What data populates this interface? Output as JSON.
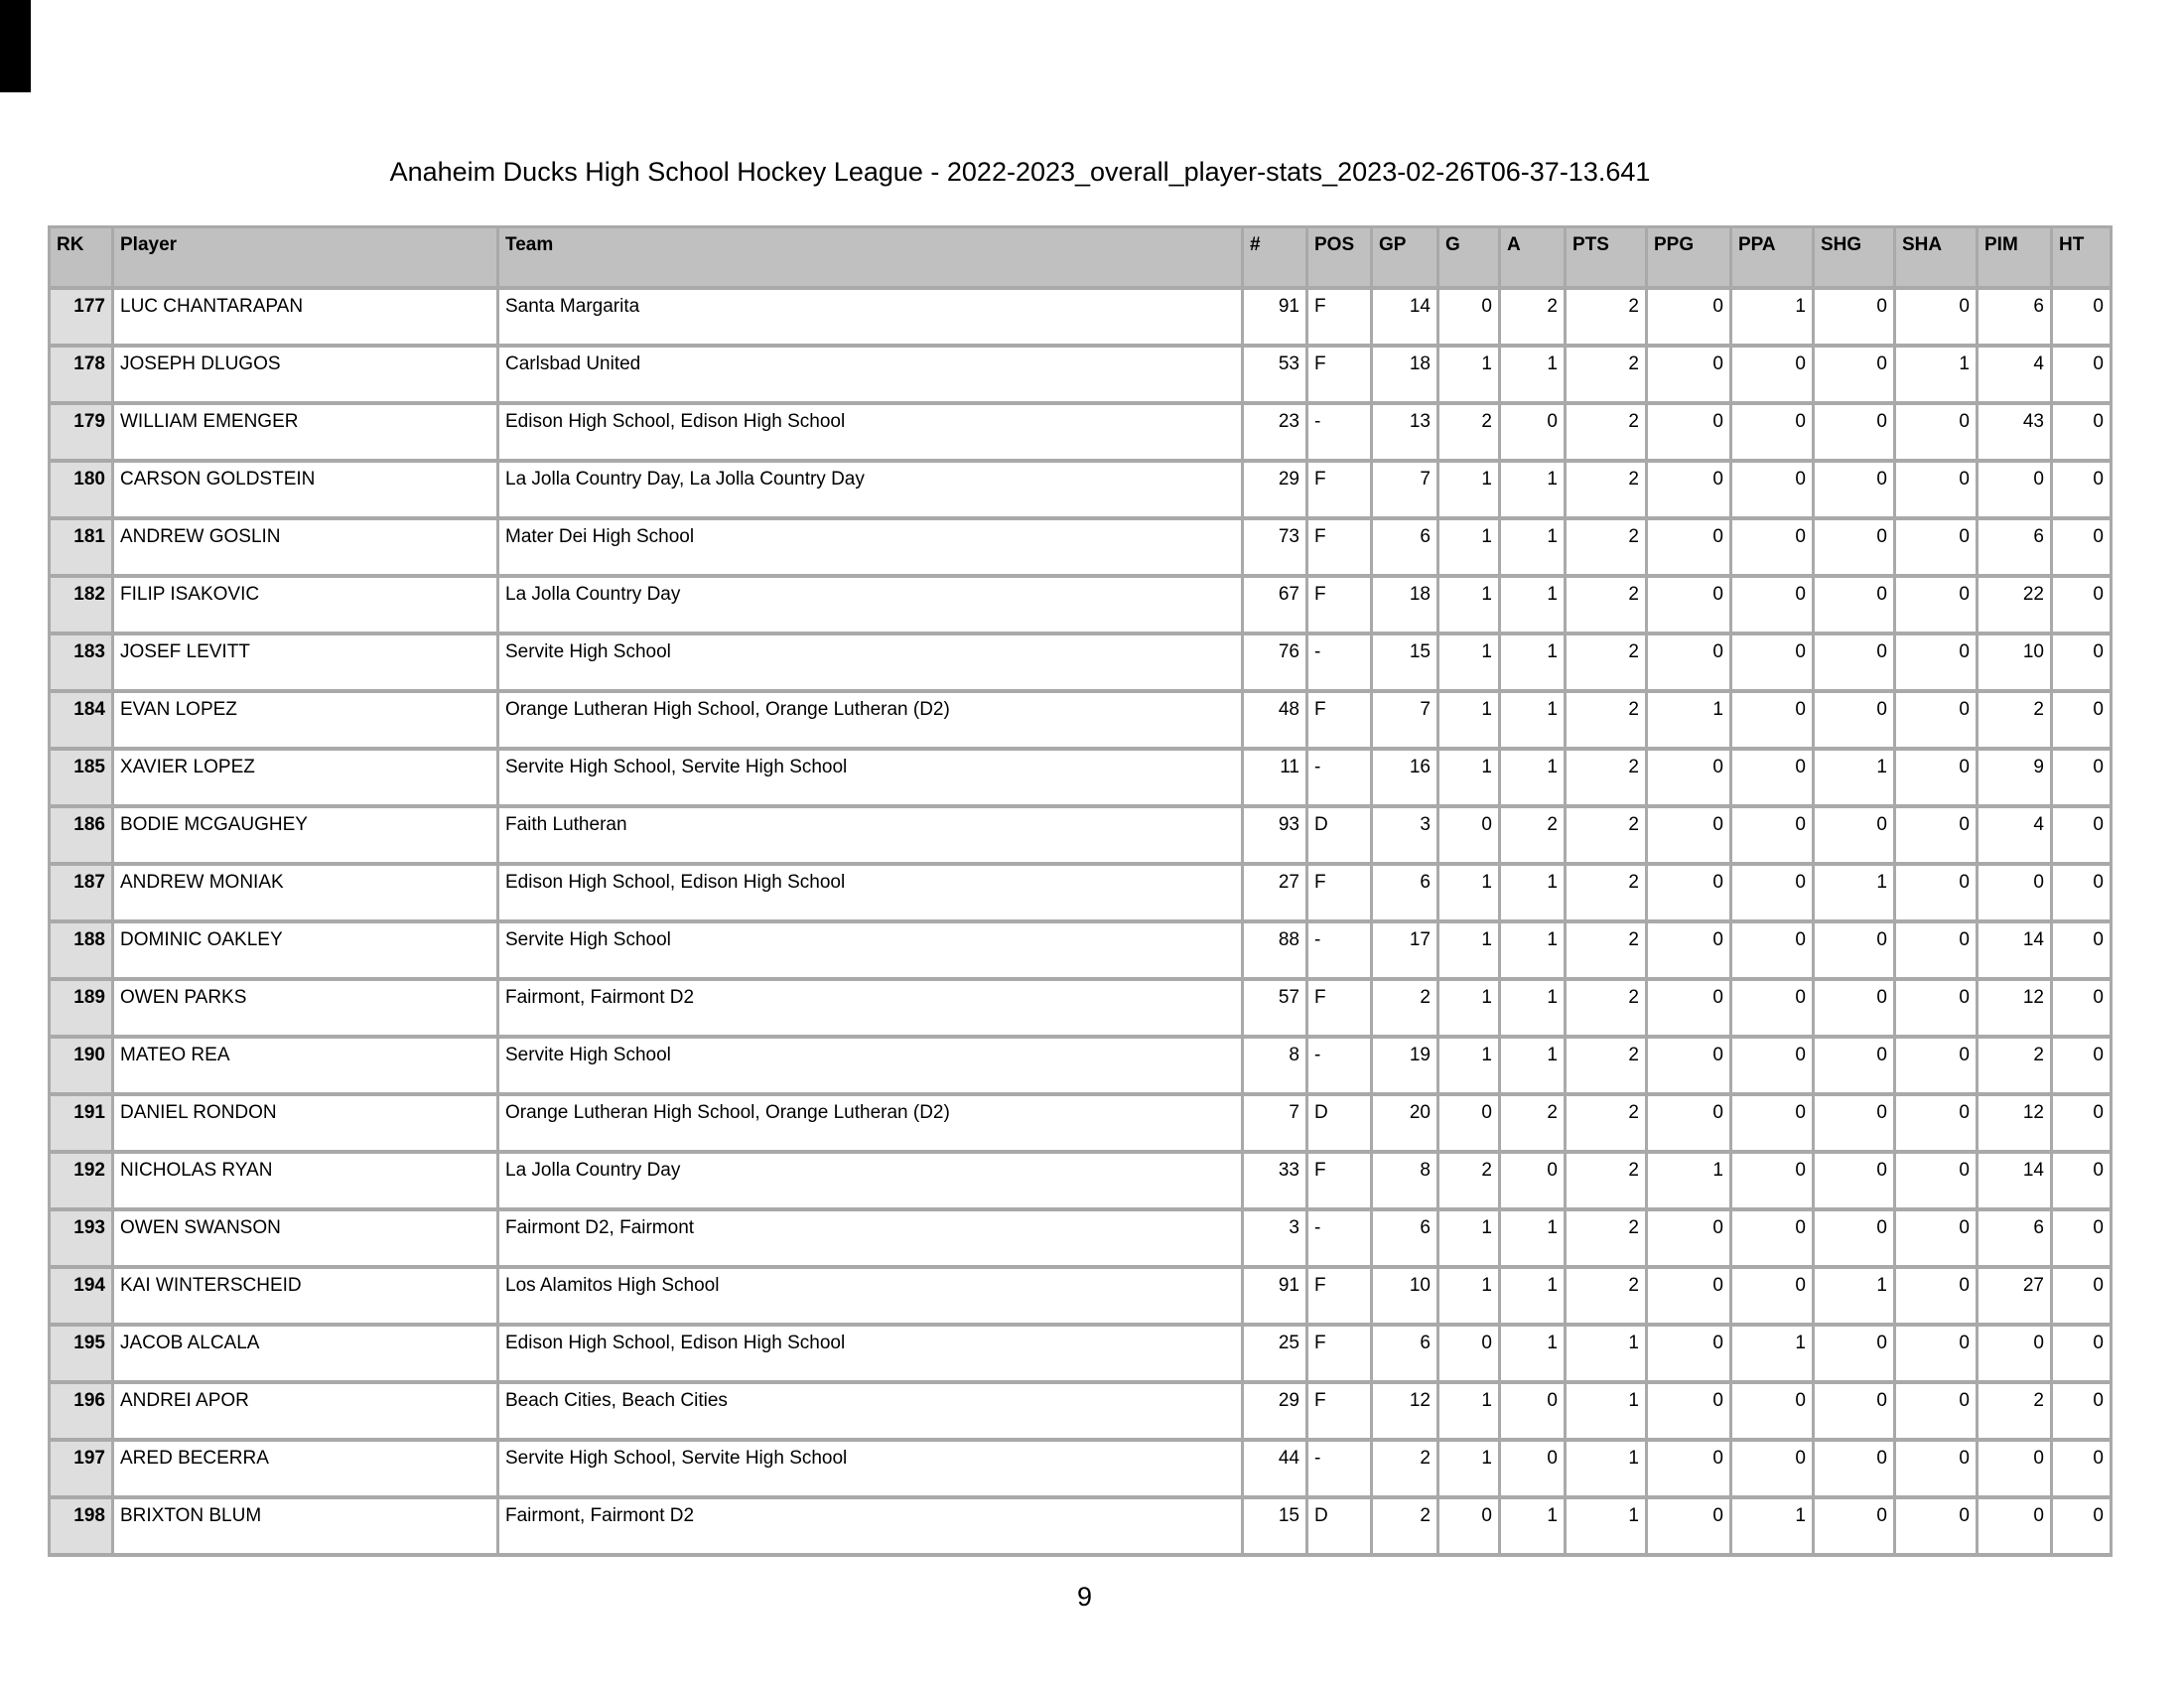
{
  "title": "Anaheim Ducks High School Hockey League - 2022-2023_overall_player-stats_2023-02-26T06-37-13.641",
  "page_number": "9",
  "colors": {
    "header_bg": "#c0c0c0",
    "rank_cell_bg": "#dedede",
    "grid_line": "#a9a9a9",
    "rank_divider": "#444444"
  },
  "table": {
    "columns": [
      "RK",
      "Player",
      "Team",
      "#",
      "POS",
      "GP",
      "G",
      "A",
      "PTS",
      "PPG",
      "PPA",
      "SHG",
      "SHA",
      "PIM",
      "HT"
    ],
    "rows": [
      [
        "177",
        "LUC CHANTARAPAN",
        "Santa Margarita",
        "91",
        "F",
        "14",
        "0",
        "2",
        "2",
        "0",
        "1",
        "0",
        "0",
        "6",
        "0"
      ],
      [
        "178",
        "JOSEPH DLUGOS",
        "Carlsbad United",
        "53",
        "F",
        "18",
        "1",
        "1",
        "2",
        "0",
        "0",
        "0",
        "1",
        "4",
        "0"
      ],
      [
        "179",
        "WILLIAM EMENGER",
        "Edison High School, Edison High School",
        "23",
        "-",
        "13",
        "2",
        "0",
        "2",
        "0",
        "0",
        "0",
        "0",
        "43",
        "0"
      ],
      [
        "180",
        "CARSON GOLDSTEIN",
        "La Jolla Country Day, La Jolla Country Day",
        "29",
        "F",
        "7",
        "1",
        "1",
        "2",
        "0",
        "0",
        "0",
        "0",
        "0",
        "0"
      ],
      [
        "181",
        "ANDREW GOSLIN",
        "Mater Dei High School",
        "73",
        "F",
        "6",
        "1",
        "1",
        "2",
        "0",
        "0",
        "0",
        "0",
        "6",
        "0"
      ],
      [
        "182",
        "FILIP ISAKOVIC",
        "La Jolla Country Day",
        "67",
        "F",
        "18",
        "1",
        "1",
        "2",
        "0",
        "0",
        "0",
        "0",
        "22",
        "0"
      ],
      [
        "183",
        "JOSEF LEVITT",
        "Servite High School",
        "76",
        "-",
        "15",
        "1",
        "1",
        "2",
        "0",
        "0",
        "0",
        "0",
        "10",
        "0"
      ],
      [
        "184",
        "EVAN LOPEZ",
        "Orange Lutheran High School, Orange Lutheran (D2)",
        "48",
        "F",
        "7",
        "1",
        "1",
        "2",
        "1",
        "0",
        "0",
        "0",
        "2",
        "0"
      ],
      [
        "185",
        "XAVIER LOPEZ",
        "Servite High School, Servite High School",
        "11",
        "-",
        "16",
        "1",
        "1",
        "2",
        "0",
        "0",
        "1",
        "0",
        "9",
        "0"
      ],
      [
        "186",
        "BODIE MCGAUGHEY",
        "Faith Lutheran",
        "93",
        "D",
        "3",
        "0",
        "2",
        "2",
        "0",
        "0",
        "0",
        "0",
        "4",
        "0"
      ],
      [
        "187",
        "ANDREW MONIAK",
        "Edison High School, Edison High School",
        "27",
        "F",
        "6",
        "1",
        "1",
        "2",
        "0",
        "0",
        "1",
        "0",
        "0",
        "0"
      ],
      [
        "188",
        "DOMINIC OAKLEY",
        "Servite High School",
        "88",
        "-",
        "17",
        "1",
        "1",
        "2",
        "0",
        "0",
        "0",
        "0",
        "14",
        "0"
      ],
      [
        "189",
        "OWEN PARKS",
        "Fairmont, Fairmont D2",
        "57",
        "F",
        "2",
        "1",
        "1",
        "2",
        "0",
        "0",
        "0",
        "0",
        "12",
        "0"
      ],
      [
        "190",
        "MATEO REA",
        "Servite High School",
        "8",
        "-",
        "19",
        "1",
        "1",
        "2",
        "0",
        "0",
        "0",
        "0",
        "2",
        "0"
      ],
      [
        "191",
        "DANIEL RONDON",
        "Orange Lutheran High School, Orange Lutheran (D2)",
        "7",
        "D",
        "20",
        "0",
        "2",
        "2",
        "0",
        "0",
        "0",
        "0",
        "12",
        "0"
      ],
      [
        "192",
        "NICHOLAS RYAN",
        "La Jolla Country Day",
        "33",
        "F",
        "8",
        "2",
        "0",
        "2",
        "1",
        "0",
        "0",
        "0",
        "14",
        "0"
      ],
      [
        "193",
        "OWEN SWANSON",
        "Fairmont D2, Fairmont",
        "3",
        "-",
        "6",
        "1",
        "1",
        "2",
        "0",
        "0",
        "0",
        "0",
        "6",
        "0"
      ],
      [
        "194",
        "KAI WINTERSCHEID",
        "Los Alamitos High School",
        "91",
        "F",
        "10",
        "1",
        "1",
        "2",
        "0",
        "0",
        "1",
        "0",
        "27",
        "0"
      ],
      [
        "195",
        "JACOB ALCALA",
        "Edison High School, Edison High School",
        "25",
        "F",
        "6",
        "0",
        "1",
        "1",
        "0",
        "1",
        "0",
        "0",
        "0",
        "0"
      ],
      [
        "196",
        "ANDREI APOR",
        "Beach Cities, Beach Cities",
        "29",
        "F",
        "12",
        "1",
        "0",
        "1",
        "0",
        "0",
        "0",
        "0",
        "2",
        "0"
      ],
      [
        "197",
        "ARED BECERRA",
        "Servite High School, Servite High School",
        "44",
        "-",
        "2",
        "1",
        "0",
        "1",
        "0",
        "0",
        "0",
        "0",
        "0",
        "0"
      ],
      [
        "198",
        "BRIXTON BLUM",
        "Fairmont, Fairmont D2",
        "15",
        "D",
        "2",
        "0",
        "1",
        "1",
        "0",
        "1",
        "0",
        "0",
        "0",
        "0"
      ]
    ]
  }
}
